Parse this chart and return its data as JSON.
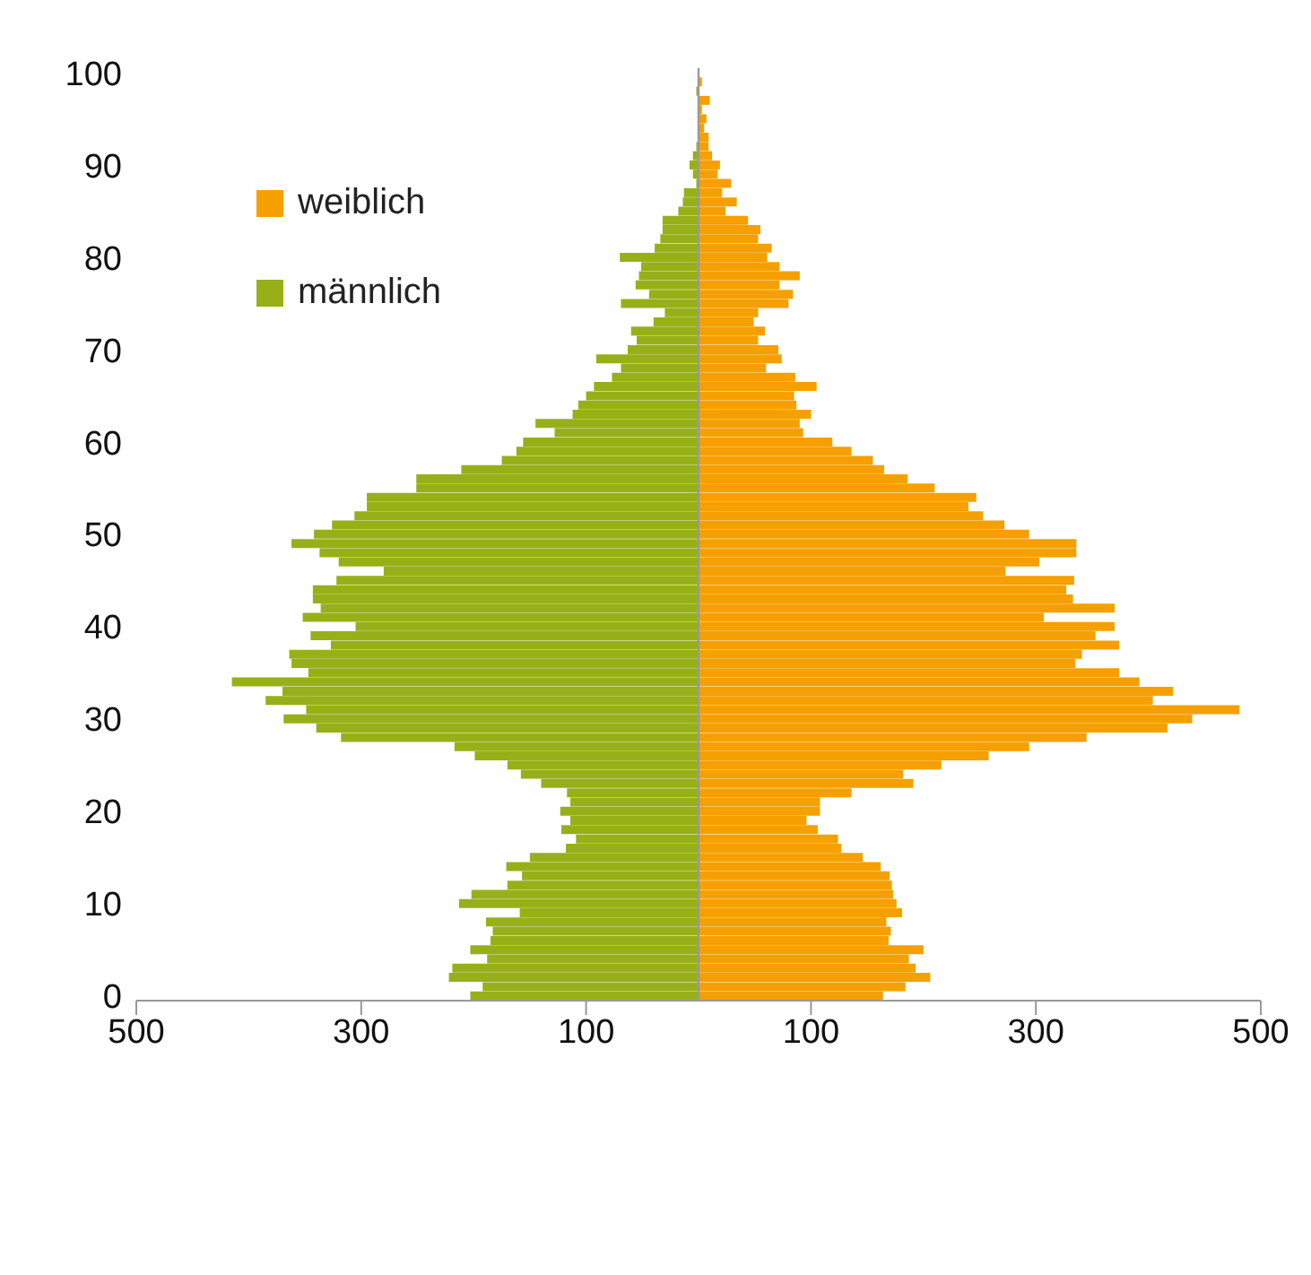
{
  "chart_data": {
    "type": "bar",
    "orientation": "horizontal",
    "stacked": true,
    "legend": "top left",
    "grid": false,
    "categories": [
      "100",
      null,
      null,
      null,
      null,
      null,
      null,
      null,
      null,
      null,
      "90",
      null,
      null,
      null,
      null,
      null,
      null,
      null,
      null,
      null,
      "80",
      null,
      null,
      null,
      null,
      null,
      null,
      null,
      null,
      null,
      "70",
      null,
      null,
      null,
      null,
      null,
      null,
      null,
      null,
      null,
      "60",
      null,
      null,
      null,
      null,
      null,
      null,
      null,
      null,
      null,
      "50",
      null,
      null,
      null,
      null,
      null,
      null,
      null,
      null,
      null,
      "40",
      null,
      null,
      null,
      null,
      null,
      null,
      null,
      null,
      null,
      "30",
      null,
      null,
      null,
      null,
      null,
      null,
      null,
      null,
      null,
      "20",
      null,
      null,
      null,
      null,
      null,
      null,
      null,
      null,
      null,
      "10",
      null,
      null,
      null,
      null,
      null,
      null,
      null,
      null,
      null,
      "0"
    ],
    "xlim": [
      -500,
      500
    ],
    "xticks": [
      {
        "value": -500,
        "label": "500"
      },
      {
        "value": -300,
        "label": "300"
      },
      {
        "value": -100,
        "label": "100"
      },
      100,
      300,
      500
    ],
    "series": [
      {
        "name": "weiblich",
        "color": "#f5a000",
        "values": [
          0,
          3,
          null,
          10,
          3,
          7,
          5,
          9,
          9,
          12,
          19,
          17,
          29,
          21,
          34,
          24,
          44,
          55,
          53,
          65,
          61,
          72,
          90,
          72,
          84,
          80,
          53,
          49,
          59,
          53,
          71,
          74,
          60,
          86,
          105,
          85,
          87,
          100,
          90,
          93,
          119,
          136,
          155,
          165,
          186,
          210,
          247,
          240,
          253,
          272,
          294,
          336,
          336,
          303,
          273,
          334,
          327,
          333,
          370,
          307,
          370,
          353,
          374,
          341,
          335,
          374,
          392,
          422,
          404,
          481,
          439,
          417,
          345,
          294,
          258,
          216,
          182,
          191,
          136,
          108,
          108,
          96,
          106,
          124,
          127,
          146,
          162,
          170,
          172,
          173,
          176,
          181,
          167,
          171,
          169,
          200,
          187,
          193,
          206,
          184,
          164
        ]
      },
      {
        "name": "männlich",
        "color": "#98b018",
        "values": [
          0,
          0,
          -2,
          0,
          0,
          0,
          0,
          0,
          -2,
          -5,
          -8,
          -5,
          -2,
          -13,
          -14,
          -18,
          -32,
          -32,
          -34,
          -39,
          -70,
          -51,
          -53,
          -56,
          -44,
          -69,
          -30,
          -40,
          -60,
          -55,
          -63,
          -91,
          -69,
          -77,
          -93,
          -100,
          -107,
          -112,
          -145,
          -128,
          -156,
          -162,
          -175,
          -211,
          -251,
          -251,
          -295,
          -295,
          -306,
          -326,
          -342,
          -362,
          -337,
          -320,
          -280,
          -322,
          -343,
          -343,
          -336,
          -352,
          -305,
          -345,
          -327,
          -364,
          -362,
          -347,
          -415,
          -370,
          -385,
          -349,
          -369,
          -340,
          -318,
          -217,
          -199,
          -170,
          -158,
          -140,
          -117,
          -114,
          -123,
          -114,
          -122,
          -109,
          -118,
          -150,
          -171,
          -157,
          -170,
          -202,
          -213,
          -159,
          -189,
          -183,
          -185,
          -203,
          -188,
          -219,
          -222,
          -192,
          -203
        ]
      }
    ]
  }
}
